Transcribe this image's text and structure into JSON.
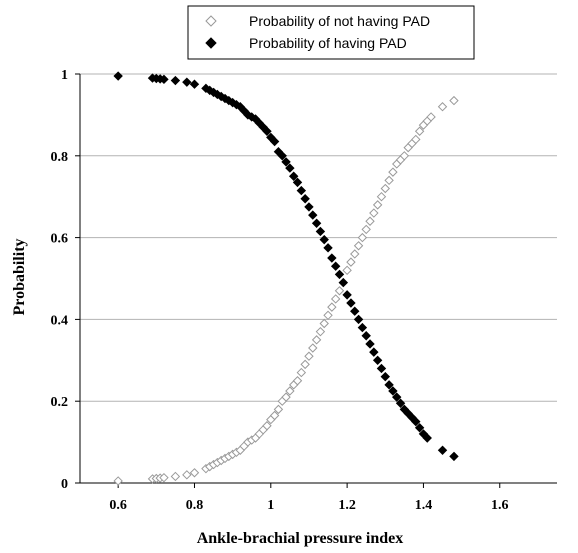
{
  "chart_data": {
    "type": "scatter",
    "title": "",
    "xlabel": "Ankle-brachial pressure index",
    "ylabel": "Probability",
    "xlim": [
      0.5,
      1.75
    ],
    "ylim": [
      0,
      1
    ],
    "xticks": [
      0.6,
      0.8,
      1,
      1.2,
      1.4,
      1.6
    ],
    "xtick_labels": [
      "0.6",
      "0.8",
      "1",
      "1.2",
      "1.4",
      "1.6"
    ],
    "yticks": [
      0,
      0.2,
      0.4,
      0.6,
      0.8,
      1
    ],
    "ytick_labels": [
      "0",
      "0.2",
      "0.4",
      "0.6",
      "0.8",
      "1"
    ],
    "grid": "horizontal",
    "legend_position": "top",
    "series": [
      {
        "name": "Probability of not having PAD",
        "marker": "diamond-open",
        "color": "#999999",
        "x": [
          0.6,
          0.69,
          0.7,
          0.71,
          0.72,
          0.75,
          0.78,
          0.8,
          0.83,
          0.84,
          0.85,
          0.86,
          0.87,
          0.88,
          0.89,
          0.9,
          0.91,
          0.92,
          0.93,
          0.94,
          0.95,
          0.96,
          0.97,
          0.98,
          0.99,
          1.0,
          1.01,
          1.02,
          1.03,
          1.04,
          1.05,
          1.06,
          1.07,
          1.08,
          1.09,
          1.1,
          1.11,
          1.12,
          1.13,
          1.14,
          1.15,
          1.16,
          1.17,
          1.18,
          1.19,
          1.2,
          1.21,
          1.22,
          1.23,
          1.24,
          1.25,
          1.26,
          1.27,
          1.28,
          1.29,
          1.3,
          1.31,
          1.32,
          1.33,
          1.34,
          1.35,
          1.36,
          1.37,
          1.38,
          1.39,
          1.4,
          1.41,
          1.42,
          1.45,
          1.48
        ],
        "y": [
          0.005,
          0.01,
          0.011,
          0.012,
          0.013,
          0.016,
          0.02,
          0.025,
          0.035,
          0.04,
          0.045,
          0.05,
          0.055,
          0.06,
          0.065,
          0.07,
          0.075,
          0.08,
          0.09,
          0.1,
          0.105,
          0.11,
          0.12,
          0.13,
          0.14,
          0.155,
          0.165,
          0.18,
          0.2,
          0.21,
          0.225,
          0.24,
          0.25,
          0.27,
          0.29,
          0.31,
          0.33,
          0.35,
          0.37,
          0.39,
          0.41,
          0.43,
          0.45,
          0.47,
          0.49,
          0.52,
          0.54,
          0.56,
          0.58,
          0.6,
          0.62,
          0.64,
          0.66,
          0.68,
          0.7,
          0.72,
          0.74,
          0.76,
          0.78,
          0.79,
          0.8,
          0.82,
          0.83,
          0.84,
          0.86,
          0.875,
          0.885,
          0.895,
          0.92,
          0.935
        ]
      },
      {
        "name": "Probability of having PAD",
        "marker": "diamond-filled",
        "color": "#000000",
        "x": [
          0.6,
          0.69,
          0.7,
          0.71,
          0.72,
          0.75,
          0.78,
          0.8,
          0.83,
          0.84,
          0.85,
          0.86,
          0.87,
          0.88,
          0.89,
          0.9,
          0.91,
          0.92,
          0.93,
          0.94,
          0.95,
          0.96,
          0.97,
          0.98,
          0.99,
          1.0,
          1.01,
          1.02,
          1.03,
          1.04,
          1.05,
          1.06,
          1.07,
          1.08,
          1.09,
          1.1,
          1.11,
          1.12,
          1.13,
          1.14,
          1.15,
          1.16,
          1.17,
          1.18,
          1.19,
          1.2,
          1.21,
          1.22,
          1.23,
          1.24,
          1.25,
          1.26,
          1.27,
          1.28,
          1.29,
          1.3,
          1.31,
          1.32,
          1.33,
          1.34,
          1.35,
          1.36,
          1.37,
          1.38,
          1.39,
          1.4,
          1.41,
          1.45,
          1.48
        ],
        "y": [
          0.995,
          0.99,
          0.989,
          0.988,
          0.987,
          0.984,
          0.98,
          0.975,
          0.965,
          0.96,
          0.955,
          0.95,
          0.945,
          0.94,
          0.935,
          0.93,
          0.925,
          0.92,
          0.91,
          0.9,
          0.895,
          0.89,
          0.88,
          0.87,
          0.86,
          0.845,
          0.835,
          0.81,
          0.8,
          0.785,
          0.77,
          0.75,
          0.735,
          0.715,
          0.695,
          0.675,
          0.655,
          0.635,
          0.615,
          0.595,
          0.575,
          0.55,
          0.53,
          0.51,
          0.49,
          0.46,
          0.44,
          0.42,
          0.4,
          0.38,
          0.36,
          0.34,
          0.32,
          0.3,
          0.28,
          0.26,
          0.24,
          0.225,
          0.21,
          0.195,
          0.18,
          0.17,
          0.16,
          0.15,
          0.135,
          0.12,
          0.11,
          0.08,
          0.065
        ]
      }
    ]
  }
}
